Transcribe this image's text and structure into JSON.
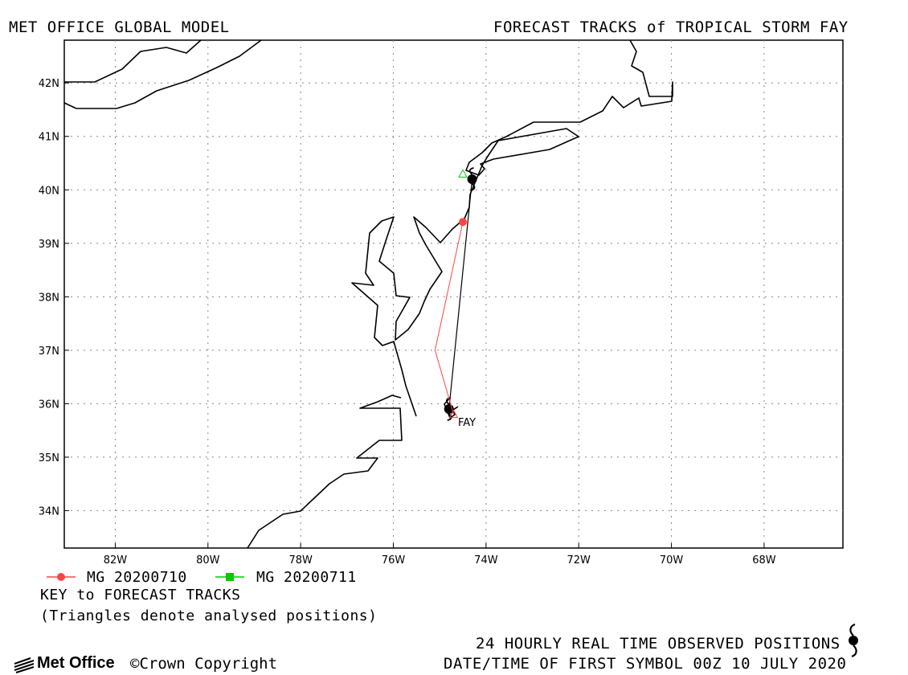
{
  "header": {
    "left_title": "MET OFFICE GLOBAL MODEL",
    "right_title": "FORECAST TRACKS of TROPICAL STORM FAY"
  },
  "map": {
    "lon_range": [
      -83.1,
      -66.3
    ],
    "lat_range": [
      33.3,
      42.8
    ],
    "lon_ticks": [
      "82W",
      "80W",
      "78W",
      "76W",
      "74W",
      "72W",
      "70W",
      "68W"
    ],
    "lat_ticks": [
      "34N",
      "35N",
      "36N",
      "37N",
      "38N",
      "39N",
      "40N",
      "41N",
      "42N"
    ],
    "storm_label": "FAY"
  },
  "chart_data": {
    "type": "map-tracks",
    "storm": "FAY",
    "observed_track": [
      {
        "lon": -74.8,
        "lat": 35.9
      },
      {
        "lon": -74.3,
        "lat": 40.2
      }
    ],
    "forecast_tracks": [
      {
        "name": "MG 20200710",
        "color": "#ff4444",
        "points": [
          {
            "lon": -74.7,
            "lat": 35.8
          },
          {
            "lon": -75.1,
            "lat": 37.0
          },
          {
            "lon": -74.5,
            "lat": 39.4
          }
        ]
      },
      {
        "name": "MG 20200711",
        "color": "#00cc00",
        "points": [
          {
            "lon": -74.5,
            "lat": 40.3
          }
        ]
      }
    ]
  },
  "legend": {
    "items": [
      {
        "label": "MG 20200710",
        "color": "#ff4444",
        "marker": "circle"
      },
      {
        "label": "MG 20200711",
        "color": "#00cc00",
        "marker": "square"
      }
    ],
    "key_label": "KEY to FORECAST TRACKS",
    "note": "(Triangles denote analysed positions)"
  },
  "footer": {
    "observed_note": "24 HOURLY REAL TIME OBSERVED POSITIONS",
    "first_symbol": "DATE/TIME OF FIRST SYMBOL 00Z 10 JULY 2020",
    "logo_text": "Met Office",
    "copyright": "Crown Copyright"
  }
}
